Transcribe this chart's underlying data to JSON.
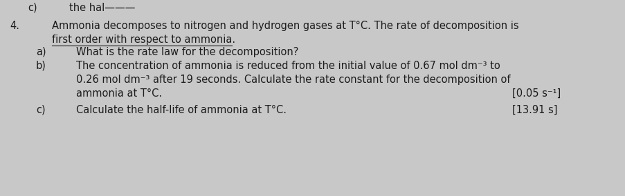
{
  "background_color": "#c8c8c8",
  "top_c_label": "c)",
  "top_c_text": "the hal————",
  "question_number": "4.",
  "intro_line1": "Ammonia decomposes to nitrogen and hydrogen gases at T°C. The rate of decomposition is",
  "intro_line2": "first order with respect to ammonia.",
  "part_a_label": "a)",
  "part_a_text": "What is the rate law for the decomposition?",
  "part_b_label": "b)",
  "part_b_line1": "The concentration of ammonia is reduced from the initial value of 0.67 mol dm⁻³ to",
  "part_b_line2": "0.26 mol dm⁻³ after 19 seconds. Calculate the rate constant for the decomposition of",
  "part_b_line3": "ammonia at T°C.",
  "part_b_answer": "[0.05 s⁻¹]",
  "part_c_label": "c)",
  "part_c_text": "Calculate the half-life of ammonia at T°C.",
  "part_c_answer": "[13.91 s]",
  "font_size": 10.5,
  "text_color": "#1c1c1c"
}
